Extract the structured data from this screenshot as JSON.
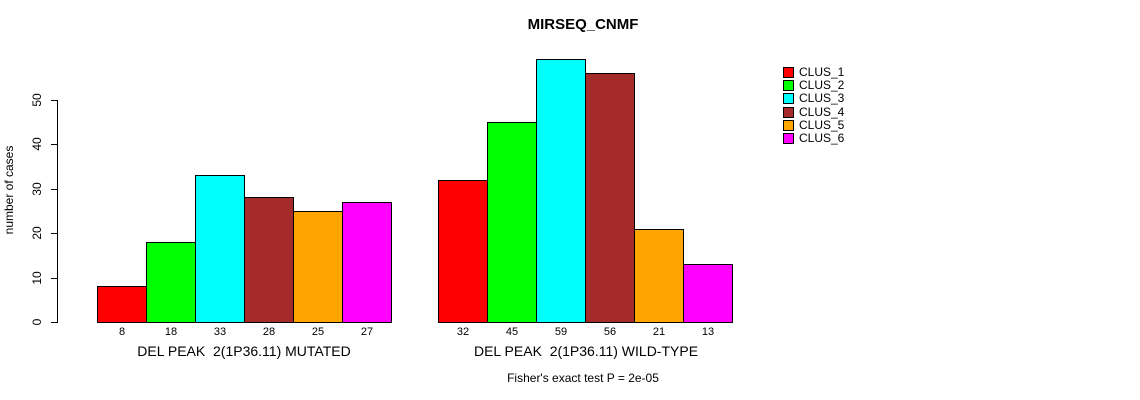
{
  "chart_data": {
    "type": "bar",
    "title": "MIRSEQ_CNMF",
    "ylabel": "number of cases",
    "xlabel": "",
    "yticks": [
      0,
      10,
      20,
      30,
      40,
      50
    ],
    "ylim": [
      0,
      59
    ],
    "grid": false,
    "legend_position": "right-inside",
    "categories": [
      "CLUS_1",
      "CLUS_2",
      "CLUS_3",
      "CLUS_4",
      "CLUS_5",
      "CLUS_6"
    ],
    "colors": [
      "#FF0000",
      "#00FF00",
      "#00FFFF",
      "#A52A2A",
      "#FFA500",
      "#FF00FF"
    ],
    "series": [
      {
        "name": "DEL PEAK  2(1P36.11) MUTATED",
        "values": [
          8,
          18,
          33,
          28,
          25,
          27
        ]
      },
      {
        "name": "DEL PEAK  2(1P36.11) WILD-TYPE",
        "values": [
          32,
          45,
          59,
          56,
          21,
          13
        ]
      }
    ],
    "bar_value_labels": true,
    "annotations": [
      "Fisher's exact test P = 2e-05"
    ]
  }
}
